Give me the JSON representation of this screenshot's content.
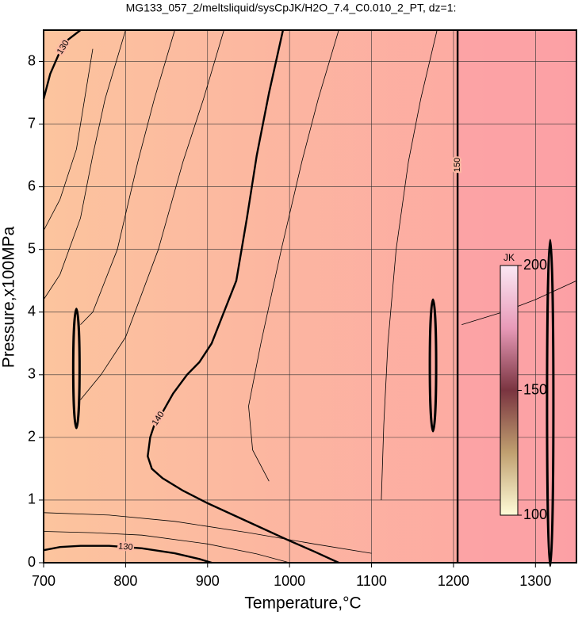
{
  "chart_data": {
    "type": "contour",
    "title": "MG133_057_2/meltsliquid/sysCpJK/H2O_7.4_C0.010_2_PT, dz=1:",
    "x_label": "Temperature,°C",
    "y_label": "Pressure,x100MPa",
    "xlim": [
      700,
      1350
    ],
    "xticks": [
      700,
      800,
      900,
      1000,
      1100,
      1200,
      1300
    ],
    "ylim": [
      0,
      8.5
    ],
    "yticks": [
      0,
      1,
      2,
      3,
      4,
      5,
      6,
      7,
      8
    ],
    "grid": true,
    "contours": [
      {
        "level": 140,
        "x": [
          992,
          975,
          960,
          948,
          935,
          920,
          905,
          890,
          875,
          858,
          845,
          835,
          830,
          827,
          832,
          845,
          870,
          900,
          950,
          1000,
          1030,
          1060
        ],
        "y": [
          8.5,
          7.5,
          6.5,
          5.5,
          4.5,
          4.0,
          3.5,
          3.2,
          3.0,
          2.7,
          2.4,
          2.2,
          2.0,
          1.7,
          1.5,
          1.35,
          1.15,
          0.95,
          0.65,
          0.35,
          0.18,
          0
        ]
      },
      {
        "level": 130,
        "x": [
          700,
          708,
          718,
          730,
          745
        ],
        "y": [
          7.4,
          7.8,
          8.1,
          8.35,
          8.5
        ]
      },
      {
        "level": 130,
        "x": [
          700,
          720,
          745,
          780,
          820,
          860,
          890,
          905
        ],
        "y": [
          0.2,
          0.25,
          0.27,
          0.27,
          0.23,
          0.15,
          0.06,
          0
        ]
      },
      {
        "level": 150,
        "x": [
          1205,
          1205,
          1205
        ],
        "y": [
          0,
          4.2,
          8.5
        ]
      },
      {
        "x": [
          800,
          775,
          760,
          745,
          720,
          700
        ],
        "y": [
          8.5,
          7.4,
          6.5,
          5.5,
          4.6,
          4.2
        ]
      },
      {
        "x": [
          860,
          835,
          815,
          790,
          760,
          745
        ],
        "y": [
          8.5,
          7.4,
          6.4,
          5.0,
          4.0,
          3.8
        ]
      },
      {
        "x": [
          920,
          895,
          870,
          840,
          800,
          770,
          745
        ],
        "y": [
          8.5,
          7.4,
          6.4,
          5.0,
          3.6,
          3.0,
          2.6
        ]
      },
      {
        "x": [
          1060,
          1035,
          1015,
          990,
          965,
          950,
          955,
          975
        ],
        "y": [
          8.5,
          7.4,
          6.4,
          5.0,
          3.5,
          2.5,
          1.8,
          1.3
        ]
      },
      {
        "x": [
          1180,
          1160,
          1145,
          1130,
          1120,
          1115,
          1112
        ],
        "y": [
          8.5,
          7.4,
          6.4,
          5.0,
          3.5,
          2.2,
          1.0
        ]
      },
      {
        "x": [
          700,
          760,
          820,
          900,
          960,
          1000
        ],
        "y": [
          0.5,
          0.48,
          0.44,
          0.3,
          0.14,
          0
        ]
      },
      {
        "x": [
          700,
          780,
          860,
          950,
          1030,
          1100
        ],
        "y": [
          0.8,
          0.76,
          0.66,
          0.48,
          0.3,
          0.15
        ]
      },
      {
        "x": [
          1210,
          1260,
          1300,
          1350
        ],
        "y": [
          3.8,
          4.0,
          4.2,
          4.5
        ]
      },
      {
        "x": [
          700,
          720,
          740,
          760
        ],
        "y": [
          5.3,
          5.8,
          6.6,
          8.2
        ]
      }
    ],
    "colorbar": {
      "label": "JK",
      "lim": [
        100,
        200
      ],
      "ticks": [
        100,
        150,
        200
      ]
    }
  }
}
